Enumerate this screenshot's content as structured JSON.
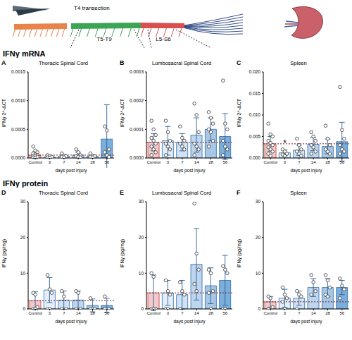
{
  "diagram": {
    "labels": {
      "cut": "T4 transection",
      "thoracic": "T5-T9",
      "lumbosacral": "L5-S6"
    }
  },
  "sections": [
    "IFNγ mRNA",
    "IFNγ protein"
  ],
  "chart_data": [
    {
      "type": "bar",
      "panel": "A",
      "title": "Thoracic Spinal Cord",
      "x_label": "days post injury",
      "y_label": "IFNγ 2^-ΔCT",
      "categories": [
        "Control",
        "3",
        "7",
        "14",
        "28",
        "56"
      ],
      "values": [
        5e-05,
        2e-05,
        3e-05,
        5e-05,
        3e-05,
        0.00033
      ],
      "errors": [
        6e-05,
        2e-05,
        3e-05,
        5e-05,
        3e-05,
        0.0006
      ],
      "points": [
        [
          0.0002,
          0.00013,
          0.0001,
          8e-05,
          6e-05,
          5e-05,
          4e-05,
          3e-05,
          2e-05,
          1e-05,
          5e-06
        ],
        [
          5e-05,
          3e-05,
          2e-05,
          1e-05,
          5e-06
        ],
        [
          8e-05,
          4e-05,
          3e-05,
          2e-05,
          1e-05
        ],
        [
          0.00015,
          0.0001,
          5e-05,
          3e-05,
          2e-05,
          1e-05
        ],
        [
          8e-05,
          4e-05,
          3e-05,
          2e-05,
          1e-05
        ],
        [
          0.00055,
          0.00048,
          0.00015,
          0.0001,
          5e-05,
          2e-05
        ]
      ],
      "colors": [
        "#f2c9cc",
        "#e3eef9",
        "#d0e2f4",
        "#bdd5ee",
        "#a7c7e6",
        "#7aaedb"
      ],
      "ylim": [
        0,
        0.0015
      ],
      "yticks": [
        {
          "value": 0,
          "label": "0.0000"
        },
        {
          "value": 0.0005,
          "label": "0.0005"
        },
        {
          "value": 0.001,
          "label": "0.0010"
        },
        {
          "value": 0.0015,
          "label": "0.0015"
        }
      ]
    },
    {
      "type": "bar",
      "panel": "B",
      "title": "Lumbosacral Spinal Cord",
      "x_label": "days post injury",
      "y_label": "IFNγ 2^-ΔCT",
      "categories": [
        "Control",
        "3",
        "7",
        "14",
        "28",
        "56"
      ],
      "values": [
        5.5e-05,
        6e-05,
        5.5e-05,
        8e-05,
        0.0001,
        7.5e-05
      ],
      "errors": [
        3e-05,
        5e-05,
        3e-05,
        6e-05,
        4e-05,
        8e-05
      ],
      "points": [
        [
          0.00013,
          0.0001,
          8e-05,
          7e-05,
          6e-05,
          5e-05,
          4e-05,
          3e-05,
          2e-05,
          1e-05
        ],
        [
          0.00013,
          9e-05,
          6e-05,
          5e-05,
          4e-05,
          3e-05,
          1e-05
        ],
        [
          0.00011,
          7e-05,
          6e-05,
          5e-05,
          4e-05,
          3e-05
        ],
        [
          0.00019,
          0.00015,
          9e-05,
          5e-05,
          4e-05,
          3e-05,
          1e-05
        ],
        [
          0.00016,
          0.00014,
          0.00012,
          0.0001,
          9e-05,
          6e-05,
          4e-05
        ],
        [
          0.00027,
          0.00012,
          0.0001,
          6e-05,
          4e-05,
          3e-05,
          1e-05
        ]
      ],
      "colors": [
        "#f2c9cc",
        "#e3eef9",
        "#d0e2f4",
        "#bdd5ee",
        "#a7c7e6",
        "#7aaedb"
      ],
      "ylim": [
        0,
        0.0003
      ],
      "yticks": [
        {
          "value": 0,
          "label": "0.0000"
        },
        {
          "value": 0.0001,
          "label": "0.0001"
        },
        {
          "value": 0.0002,
          "label": "0.0002"
        },
        {
          "value": 0.0003,
          "label": "0.0003"
        }
      ]
    },
    {
      "type": "bar",
      "panel": "C",
      "title": "Spleen",
      "x_label": "days post injury",
      "y_label": "IFNγ 2^-ΔCT",
      "categories": [
        "Control",
        "3",
        "7",
        "14",
        "28",
        "56"
      ],
      "values": [
        0.0033,
        0.0012,
        0.0018,
        0.0032,
        0.0027,
        0.0038
      ],
      "errors": [
        0.0017,
        0.0007,
        0.0012,
        0.0015,
        0.0017,
        0.0045
      ],
      "points": [
        [
          0.008,
          0.0055,
          0.005,
          0.004,
          0.0035,
          0.003,
          0.0025,
          0.002,
          0.0015,
          0.001,
          0.0005
        ],
        [
          0.002,
          0.0015,
          0.001,
          0.0008,
          0.0005
        ],
        [
          0.0045,
          0.003,
          0.002,
          0.0015,
          0.001,
          0.0005
        ],
        [
          0.006,
          0.005,
          0.004,
          0.003,
          0.0025,
          0.0015,
          0.001
        ],
        [
          0.0075,
          0.0045,
          0.003,
          0.002,
          0.0015,
          0.001
        ],
        [
          0.0165,
          0.0065,
          0.0045,
          0.003,
          0.002,
          0.0015,
          0.001
        ]
      ],
      "colors": [
        "#f2c9cc",
        "#e3eef9",
        "#d0e2f4",
        "#bdd5ee",
        "#a7c7e6",
        "#7aaedb"
      ],
      "ylim": [
        0,
        0.02
      ],
      "yticks": [
        {
          "value": 0,
          "label": "0.000"
        },
        {
          "value": 0.005,
          "label": "0.005"
        },
        {
          "value": 0.01,
          "label": "0.010"
        },
        {
          "value": 0.015,
          "label": "0.015"
        },
        {
          "value": 0.02,
          "label": "0.020"
        }
      ],
      "annotations": [
        {
          "category": "3",
          "text": "*"
        }
      ]
    },
    {
      "type": "bar",
      "panel": "D",
      "title": "Thoracic Spinal Cord",
      "x_label": "days post injury",
      "y_label": "IFNγ (pg/mg)",
      "categories": [
        "Control",
        "3",
        "7",
        "14",
        "28",
        "56"
      ],
      "values": [
        2.3,
        5.3,
        2.5,
        2.5,
        1,
        1
      ],
      "errors": [
        2.5,
        3.5,
        2.5,
        2.5,
        1.8,
        2
      ],
      "points": [
        [
          4.5,
          4,
          0.5,
          0,
          0
        ],
        [
          9.5,
          5.5,
          4.5,
          0,
          0
        ],
        [
          5,
          3.5,
          0,
          0
        ],
        [
          5,
          4.5,
          0,
          0
        ],
        [
          3,
          0,
          0,
          0
        ],
        [
          3.5,
          0,
          0,
          0
        ]
      ],
      "colors": [
        "#f2c9cc",
        "#e3eef9",
        "#d0e2f4",
        "#bdd5ee",
        "#a7c7e6",
        "#7aaedb"
      ],
      "ylim": [
        0,
        30
      ],
      "yticks": [
        0,
        10,
        20,
        30
      ]
    },
    {
      "type": "bar",
      "panel": "E",
      "title": "Lumbosacral Spinal Cord",
      "x_label": "days post injury",
      "y_label": "IFNγ (pg/mg)",
      "categories": [
        "Control",
        "3",
        "7",
        "14",
        "28",
        "56"
      ],
      "values": [
        4.5,
        4.5,
        4,
        12.5,
        6.5,
        8
      ],
      "errors": [
        5,
        3.5,
        4,
        10,
        5,
        7
      ],
      "points": [
        [
          10,
          9,
          0,
          0,
          0
        ],
        [
          8,
          5,
          4,
          0,
          0
        ],
        [
          7.5,
          5,
          4,
          0
        ],
        [
          29.5,
          15.5,
          11,
          7,
          5
        ],
        [
          11,
          10,
          5,
          4.5,
          0
        ],
        [
          12,
          11,
          10,
          0,
          0
        ]
      ],
      "colors": [
        "#f2c9cc",
        "#e3eef9",
        "#d0e2f4",
        "#bdd5ee",
        "#a7c7e6",
        "#7aaedb"
      ],
      "ylim": [
        0,
        30
      ],
      "yticks": [
        0,
        10,
        20,
        30
      ]
    },
    {
      "type": "bar",
      "panel": "F",
      "title": "Spleen",
      "x_label": "days post injury",
      "y_label": "IFNγ (pg/mg)",
      "categories": [
        "Control",
        "3",
        "7",
        "14",
        "28",
        "56"
      ],
      "values": [
        2,
        3,
        3,
        6,
        6,
        6
      ],
      "errors": [
        1.5,
        2.5,
        2,
        2.5,
        2.5,
        2
      ],
      "points": [
        [
          3.5,
          3,
          0.5,
          0
        ],
        [
          6,
          4,
          3,
          2,
          0
        ],
        [
          5,
          4,
          3.5,
          0
        ],
        [
          9.5,
          7.5,
          5,
          4
        ],
        [
          9.5,
          8,
          6,
          4,
          3.5
        ],
        [
          8.5,
          6.5,
          5.5,
          3
        ]
      ],
      "colors": [
        "#f2c9cc",
        "#e3eef9",
        "#d0e2f4",
        "#bdd5ee",
        "#a7c7e6",
        "#7aaedb"
      ],
      "ylim": [
        0,
        30
      ],
      "yticks": [
        0,
        10,
        20,
        30
      ]
    }
  ]
}
